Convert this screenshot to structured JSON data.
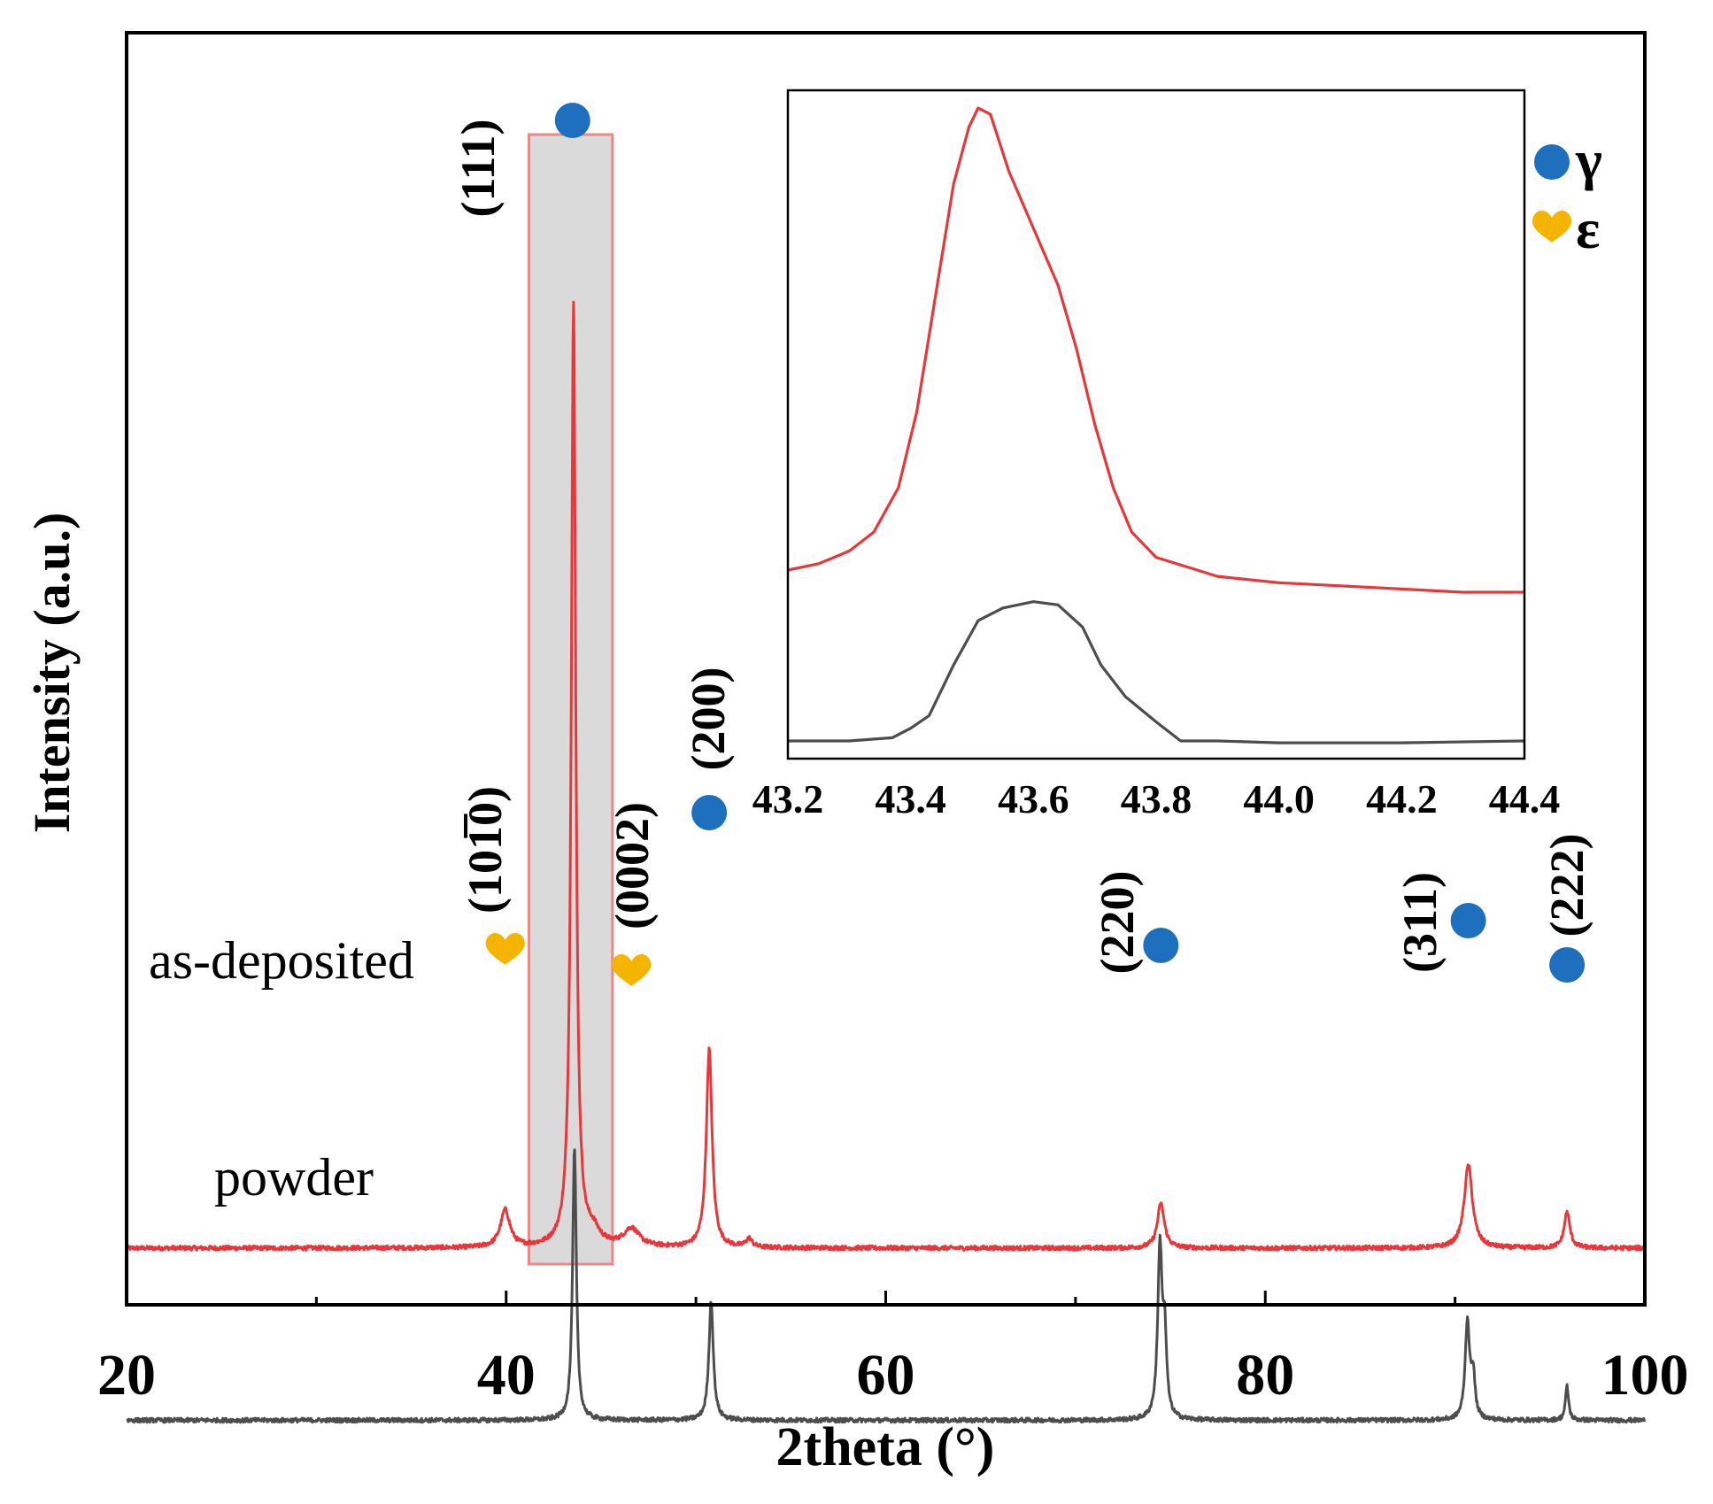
{
  "chart_data": {
    "type": "line",
    "xlabel": "2theta (°)",
    "ylabel": "Intensity (a.u.)",
    "xlim": [
      20,
      100
    ],
    "x_ticks": [
      20,
      40,
      60,
      80,
      100
    ],
    "x_tick_labels": [
      "20",
      "40",
      "60",
      "80",
      "100"
    ],
    "y_tick_labels_shown": false,
    "highlight_range_x": [
      41.2,
      45.6
    ],
    "series": [
      {
        "name": "as-deposited",
        "color": "#e8373a",
        "baseline": 0.1,
        "peaks": [
          {
            "x": 39.95,
            "height": 0.035,
            "width": 0.3
          },
          {
            "x": 43.55,
            "height": 0.89,
            "width": 0.14
          },
          {
            "x": 44.6,
            "height": 0.012,
            "width": 0.4
          },
          {
            "x": 46.6,
            "height": 0.017,
            "width": 0.5
          },
          {
            "x": 50.7,
            "height": 0.187,
            "width": 0.18
          },
          {
            "x": 52.8,
            "height": 0.008,
            "width": 0.2
          },
          {
            "x": 74.5,
            "height": 0.042,
            "width": 0.22
          },
          {
            "x": 90.7,
            "height": 0.078,
            "width": 0.26
          },
          {
            "x": 95.9,
            "height": 0.034,
            "width": 0.18
          }
        ]
      },
      {
        "name": "powder",
        "color": "#4d4d4d",
        "baseline": -0.062,
        "peaks": [
          {
            "x": 43.6,
            "height": 0.255,
            "width": 0.12
          },
          {
            "x": 50.8,
            "height": 0.112,
            "width": 0.14
          },
          {
            "x": 74.45,
            "height": 0.16,
            "width": 0.14
          },
          {
            "x": 74.7,
            "height": 0.07,
            "width": 0.12
          },
          {
            "x": 90.65,
            "height": 0.092,
            "width": 0.14
          },
          {
            "x": 90.95,
            "height": 0.04,
            "width": 0.12
          },
          {
            "x": 95.9,
            "height": 0.032,
            "width": 0.1
          }
        ]
      }
    ],
    "peak_labels": [
      {
        "text": "(111)",
        "x": 43.5,
        "phase": "γ"
      },
      {
        "text": "(101̅0)",
        "x": 39.95,
        "phase": "ε"
      },
      {
        "text": "(0002)",
        "x": 46.6,
        "phase": "ε"
      },
      {
        "text": "(200)",
        "x": 50.7,
        "phase": "γ"
      },
      {
        "text": "(220)",
        "x": 74.5,
        "phase": "γ"
      },
      {
        "text": "(311)",
        "x": 90.7,
        "phase": "γ"
      },
      {
        "text": "(222)",
        "x": 95.9,
        "phase": "γ"
      }
    ],
    "series_labels": [
      {
        "text": "as-deposited"
      },
      {
        "text": "powder"
      }
    ],
    "legend": {
      "position": "top-right",
      "entries": [
        {
          "symbol": "circle",
          "color": "#1f6fbf",
          "label": "γ"
        },
        {
          "symbol": "heart",
          "color": "#f4b400",
          "label": "ε"
        }
      ]
    },
    "inset": {
      "xlim": [
        43.2,
        44.4
      ],
      "x_ticks": [
        43.2,
        43.4,
        43.6,
        43.8,
        44.0,
        44.2,
        44.4
      ],
      "x_tick_labels": [
        "43.2",
        "43.4",
        "43.6",
        "43.8",
        "44.0",
        "44.2",
        "44.4"
      ],
      "series": [
        {
          "name": "as-deposited",
          "color": "#e8373a",
          "points": [
            [
              43.2,
              0.27
            ],
            [
              43.25,
              0.28
            ],
            [
              43.3,
              0.3
            ],
            [
              43.34,
              0.33
            ],
            [
              43.38,
              0.4
            ],
            [
              43.41,
              0.52
            ],
            [
              43.44,
              0.7
            ],
            [
              43.47,
              0.88
            ],
            [
              43.495,
              0.97
            ],
            [
              43.51,
              1.0
            ],
            [
              43.53,
              0.99
            ],
            [
              43.56,
              0.9
            ],
            [
              43.6,
              0.81
            ],
            [
              43.64,
              0.72
            ],
            [
              43.67,
              0.62
            ],
            [
              43.7,
              0.5
            ],
            [
              43.73,
              0.4
            ],
            [
              43.76,
              0.33
            ],
            [
              43.8,
              0.29
            ],
            [
              43.85,
              0.275
            ],
            [
              43.9,
              0.26
            ],
            [
              44.0,
              0.25
            ],
            [
              44.1,
              0.245
            ],
            [
              44.2,
              0.24
            ],
            [
              44.3,
              0.235
            ],
            [
              44.4,
              0.235
            ]
          ]
        },
        {
          "name": "powder",
          "color": "#4d4d4d",
          "points": [
            [
              43.2,
              0.0
            ],
            [
              43.3,
              0.0
            ],
            [
              43.37,
              0.005
            ],
            [
              43.4,
              0.02
            ],
            [
              43.43,
              0.04
            ],
            [
              43.47,
              0.12
            ],
            [
              43.51,
              0.19
            ],
            [
              43.55,
              0.21
            ],
            [
              43.6,
              0.22
            ],
            [
              43.64,
              0.215
            ],
            [
              43.68,
              0.18
            ],
            [
              43.71,
              0.12
            ],
            [
              43.75,
              0.07
            ],
            [
              43.8,
              0.03
            ],
            [
              43.84,
              0.0
            ],
            [
              43.9,
              0.0
            ],
            [
              44.0,
              -0.003
            ],
            [
              44.2,
              -0.003
            ],
            [
              44.4,
              0.0
            ]
          ]
        }
      ]
    }
  }
}
